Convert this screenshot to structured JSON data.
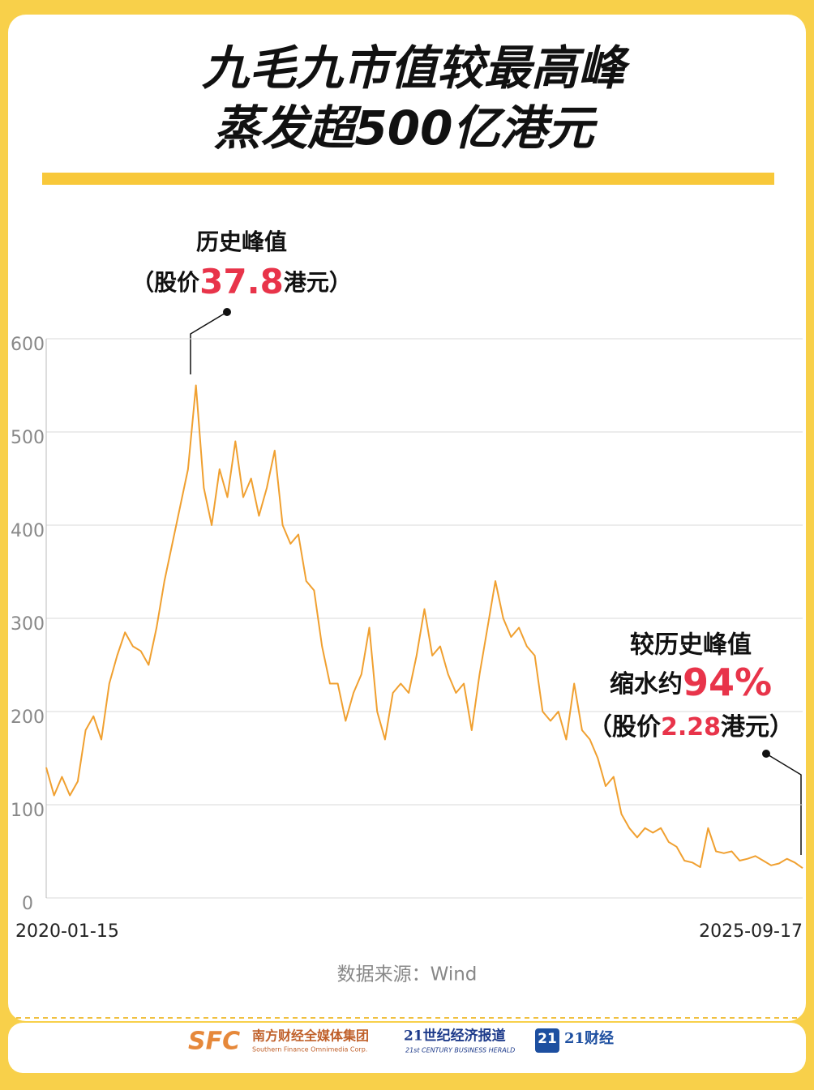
{
  "chart_data": {
    "type": "line",
    "title_lines": [
      "九毛九市值较最高峰",
      "蒸发超500亿港元"
    ],
    "categories": [
      "2020-01-15",
      null,
      null,
      null,
      null,
      null,
      null,
      null,
      null,
      null,
      null,
      null,
      null,
      null,
      null,
      null,
      null,
      null,
      null,
      null,
      null,
      null,
      null,
      null,
      null,
      null,
      null,
      null,
      null,
      null,
      null,
      null,
      null,
      null,
      null,
      null,
      null,
      null,
      null,
      null,
      null,
      null,
      null,
      null,
      null,
      null,
      null,
      null,
      null,
      null,
      null,
      null,
      null,
      null,
      null,
      null,
      null,
      null,
      null,
      null,
      null,
      null,
      null,
      null,
      null,
      null,
      null,
      null,
      null,
      null,
      null,
      null,
      null,
      null,
      null,
      null,
      null,
      null,
      null,
      null,
      null,
      null,
      null,
      null,
      null,
      null,
      null,
      null,
      null,
      null,
      null,
      null,
      null,
      null,
      null,
      null,
      "2025-09-17"
    ],
    "values": [
      140,
      110,
      130,
      110,
      125,
      180,
      195,
      170,
      230,
      260,
      285,
      270,
      265,
      250,
      290,
      340,
      380,
      420,
      460,
      550,
      440,
      400,
      460,
      430,
      490,
      430,
      450,
      410,
      440,
      480,
      400,
      380,
      390,
      340,
      330,
      270,
      230,
      230,
      190,
      220,
      240,
      290,
      200,
      170,
      220,
      230,
      220,
      260,
      310,
      260,
      270,
      240,
      220,
      230,
      180,
      240,
      290,
      340,
      300,
      280,
      290,
      270,
      260,
      200,
      190,
      200,
      170,
      230,
      180,
      170,
      150,
      120,
      130,
      90,
      75,
      65,
      75,
      70,
      75,
      60,
      55,
      40,
      38,
      33,
      75,
      50,
      48,
      50,
      40,
      42,
      45,
      40,
      35,
      37,
      42,
      38,
      32
    ],
    "color": "#f0a030",
    "ylim": [
      0,
      600
    ],
    "yticks": [
      0,
      100,
      200,
      300,
      400,
      500,
      600
    ],
    "grid": true,
    "annotations": [
      {
        "title": "历史峰值",
        "prefix": "（股价",
        "value": "37.8",
        "suffix": "港元）"
      },
      {
        "title": "较历史峰值",
        "line2": "缩水约",
        "value": "94%",
        "prefix": "（股价",
        "price": "2.28",
        "suffix": "港元）"
      }
    ],
    "source": "数据来源：Wind"
  },
  "footer": {
    "sfc": "SFC",
    "group": "南方财经全媒体集团",
    "group_en": "Southern Finance Omnimedia Corp.",
    "herald": "21世纪经济报道",
    "herald_en": "21st CENTURY BUSINESS HERALD",
    "badge": "21",
    "app": "21财经"
  }
}
